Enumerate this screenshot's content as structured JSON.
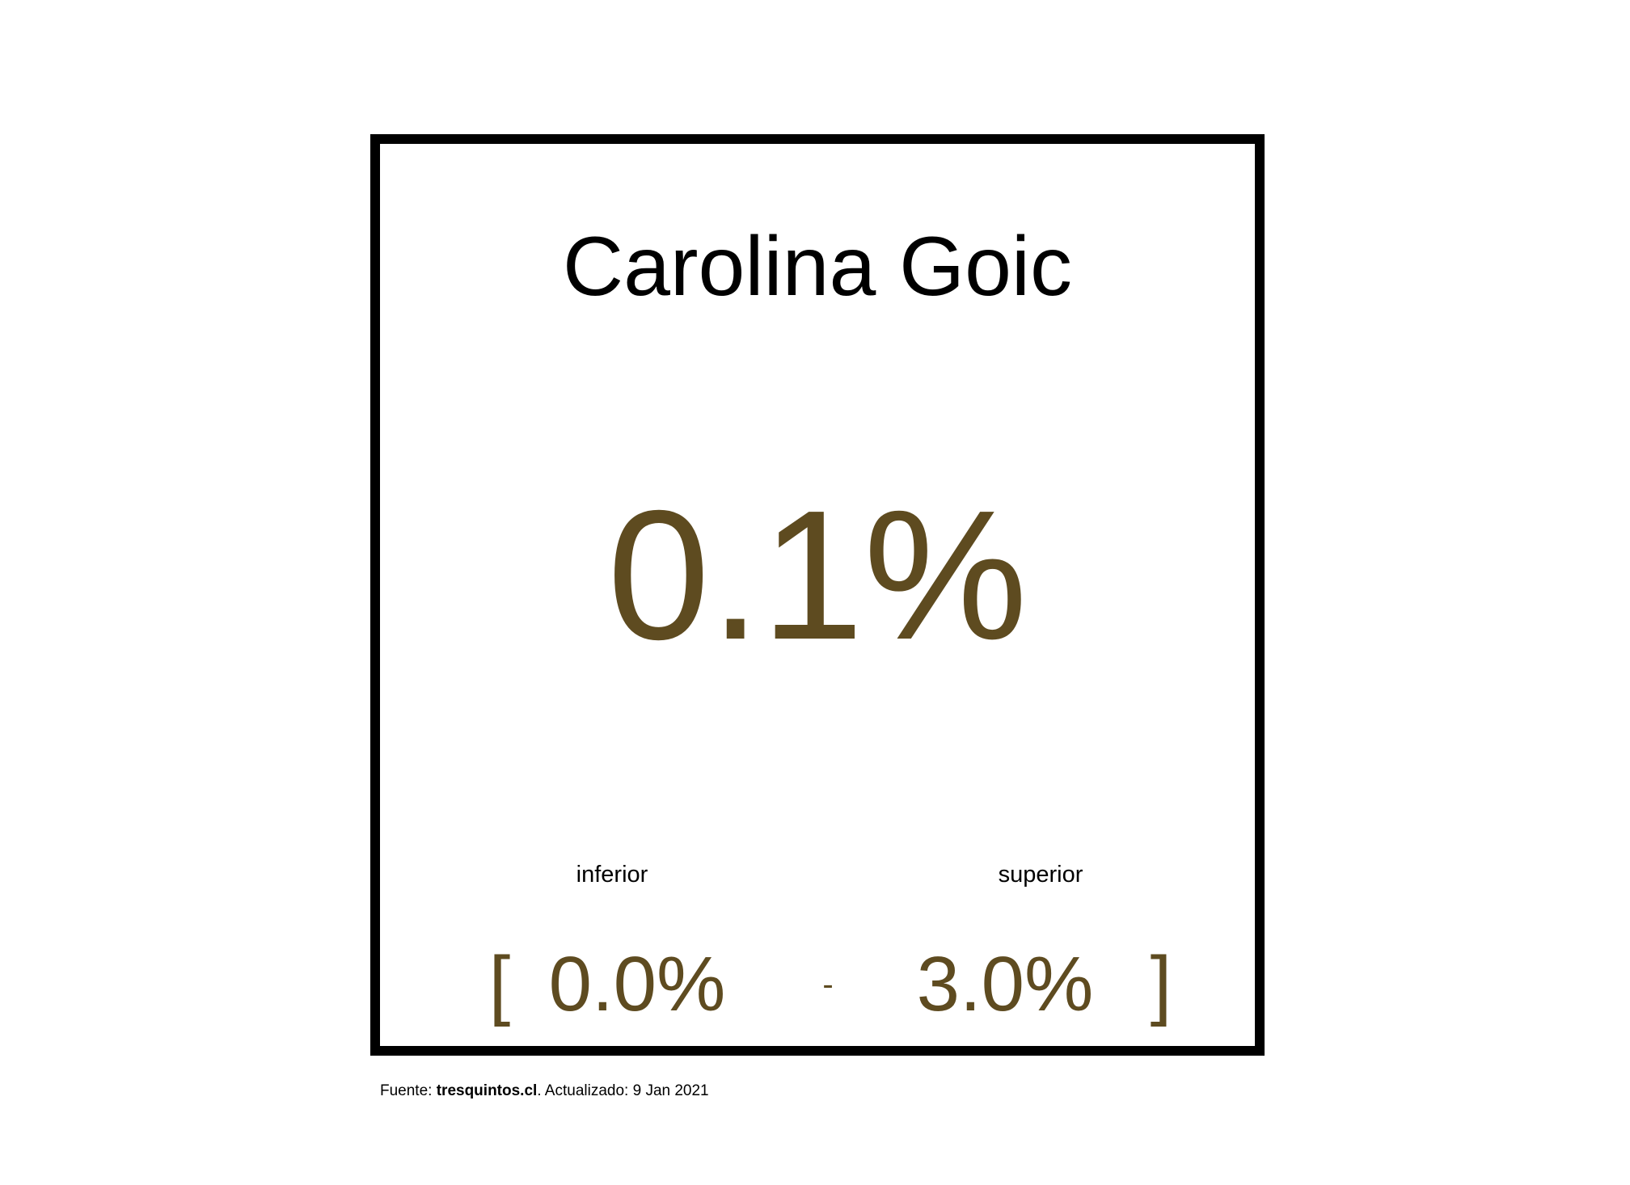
{
  "candidate": {
    "name": "Carolina Goic",
    "estimate": "0.1%"
  },
  "interval": {
    "lower_label": "inferior",
    "upper_label": "superior",
    "open_bracket": "[",
    "lower_value": "0.0%",
    "separator": "-",
    "upper_value": "3.0%",
    "close_bracket": "]"
  },
  "footer": {
    "source_prefix": "Fuente: ",
    "source_site": "tresquintos.cl",
    "updated_text": ". Actualizado: 9 Jan 2021"
  },
  "colors": {
    "value": "#5e4b20",
    "text": "#000000",
    "frame": "#000000"
  }
}
